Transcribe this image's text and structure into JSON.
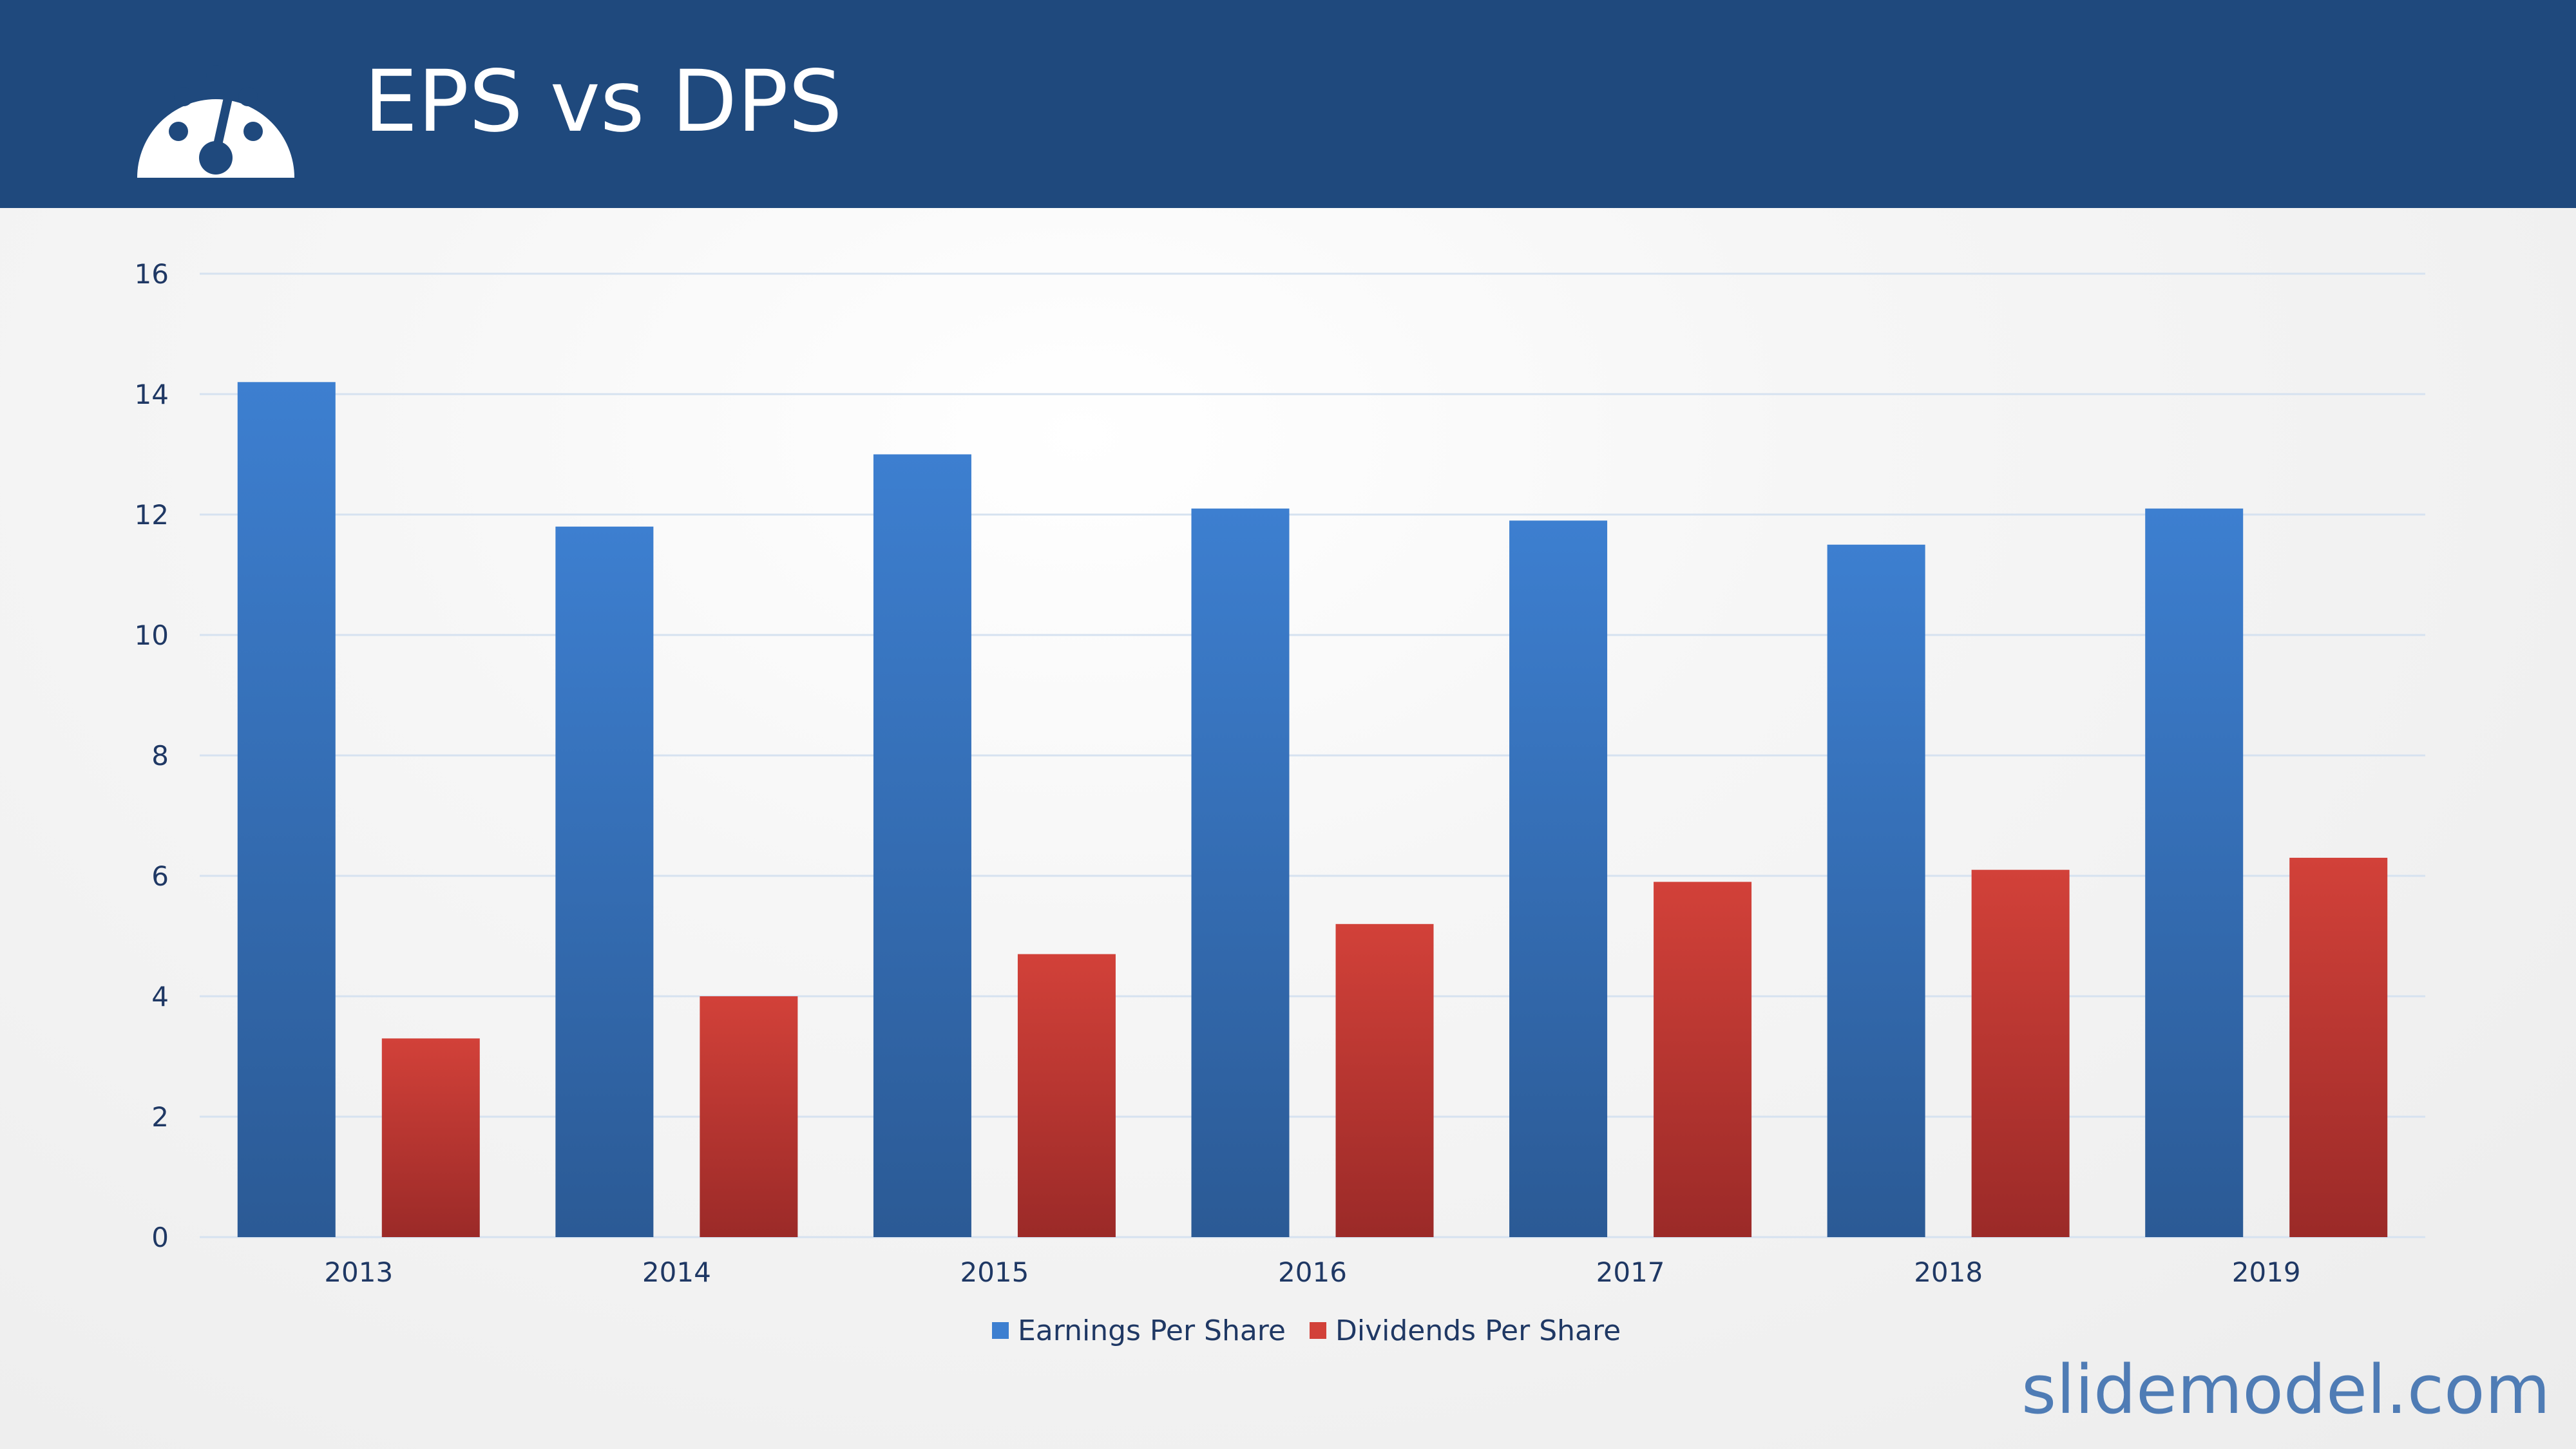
{
  "header": {
    "title": "EPS vs DPS",
    "icon": "dashboard-gauge-icon"
  },
  "footer": {
    "watermark": "slidemodel.com"
  },
  "colors": {
    "header_bg": "#1f497d",
    "eps_top": "#3d7fd0",
    "eps_bottom": "#2b5a95",
    "dps_top": "#d24139",
    "dps_bottom": "#9b2a28",
    "axis_text": "#1f3864",
    "grid": "#d6e2f0"
  },
  "chart_data": {
    "type": "bar",
    "categories": [
      "2013",
      "2014",
      "2015",
      "2016",
      "2017",
      "2018",
      "2019"
    ],
    "series": [
      {
        "name": "Earnings Per Share",
        "values": [
          14.2,
          11.8,
          13.0,
          12.1,
          11.9,
          11.5,
          12.1
        ]
      },
      {
        "name": "Dividends Per Share",
        "values": [
          3.3,
          4.0,
          4.7,
          5.2,
          5.9,
          6.1,
          6.3
        ]
      }
    ],
    "yticks": [
      "0",
      "2",
      "4",
      "6",
      "8",
      "10",
      "12",
      "14",
      "16"
    ],
    "ylim": [
      0,
      16
    ],
    "grid": true,
    "legend_position": "bottom-center"
  }
}
